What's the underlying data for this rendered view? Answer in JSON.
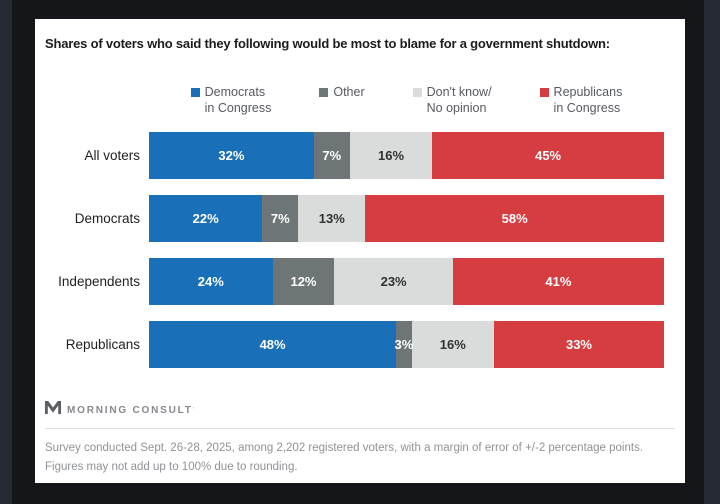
{
  "window": {
    "outer_bg": "#262b33",
    "inner_bg": "#14161a",
    "card_bg": "#ffffff"
  },
  "title": "Shares of voters who said they following would be most to blame for a government shutdown:",
  "legend": {
    "items": [
      {
        "line1": "Democrats",
        "line2": "in Congress",
        "color": "#1a70b8"
      },
      {
        "line1": "Other",
        "line2": "",
        "color": "#6e7577"
      },
      {
        "line1": "Don't know/",
        "line2": "No opinion",
        "color": "#dadcdc"
      },
      {
        "line1": "Republicans",
        "line2": "in Congress",
        "color": "#d53d40"
      }
    ]
  },
  "chart_data": {
    "type": "bar",
    "orientation": "horizontal",
    "stacked": true,
    "xlim": [
      0,
      100
    ],
    "value_suffix": "%",
    "categories": [
      "All voters",
      "Democrats",
      "Independents",
      "Republicans"
    ],
    "series": [
      {
        "name": "Democrats in Congress",
        "color": "#1a70b8",
        "label_color": "#ffffff",
        "values": [
          32,
          22,
          24,
          48
        ]
      },
      {
        "name": "Other",
        "color": "#6e7577",
        "label_color": "#ffffff",
        "values": [
          7,
          7,
          12,
          3
        ]
      },
      {
        "name": "Don't know/No opinion",
        "color": "#dadcdc",
        "label_color": "#303233",
        "values": [
          16,
          13,
          23,
          16
        ]
      },
      {
        "name": "Republicans in Congress",
        "color": "#d53d40",
        "label_color": "#ffffff",
        "values": [
          45,
          58,
          41,
          33
        ]
      }
    ]
  },
  "footer": {
    "brand": "MORNING CONSULT",
    "trademark": "’",
    "note": "Survey conducted Sept. 26-28, 2025, among 2,202 registered voters, with a margin of error of +/-2 percentage points. Figures may not add up to 100% due to rounding."
  }
}
